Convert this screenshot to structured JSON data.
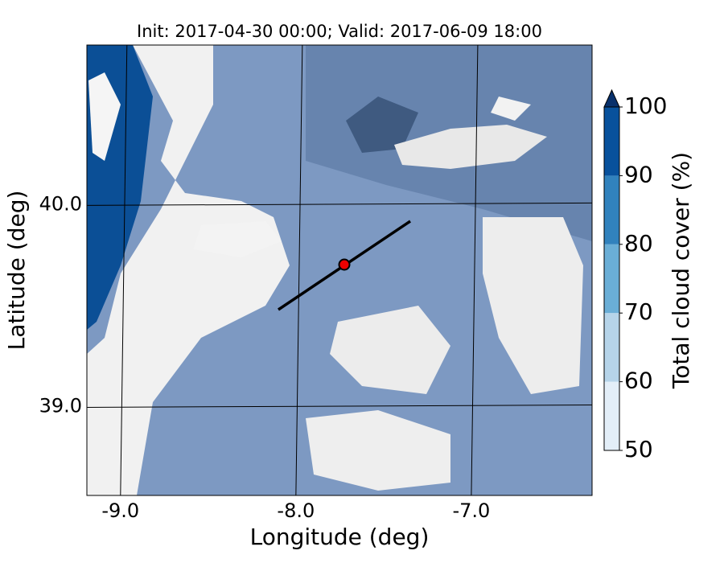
{
  "chart_data": {
    "type": "map",
    "title": "Init: 2017-04-30 00:00; Valid: 2017-06-09 18:00",
    "xlabel": "Longitude (deg)",
    "ylabel": "Latitude (deg)",
    "xlim": [
      -9.21,
      -6.33
    ],
    "ylim": [
      38.56,
      40.79
    ],
    "xticks": [
      {
        "value": -9,
        "label": "-9.0"
      },
      {
        "value": -8,
        "label": "-8.0"
      },
      {
        "value": -7,
        "label": "-7.0"
      }
    ],
    "yticks": [
      {
        "value": 39,
        "label": "39.0"
      },
      {
        "value": 40,
        "label": "40.0"
      }
    ],
    "grid": true,
    "colorbar": {
      "label": "Total cloud cover (%)",
      "ticks": [
        50,
        60,
        70,
        80,
        90,
        100
      ],
      "colors": [
        "#e3eef8",
        "#b6d4e9",
        "#6aaed6",
        "#3182bd",
        "#08519c"
      ],
      "extend_color": "#08306b"
    }
  }
}
